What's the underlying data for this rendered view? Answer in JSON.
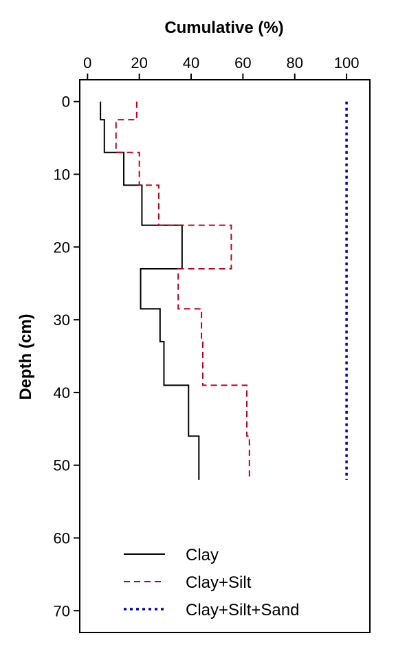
{
  "chart_data": {
    "type": "line",
    "orientation": "depth-profile",
    "title": "",
    "xlabel": "Cumulative (%)",
    "ylabel": "Depth (cm)",
    "xlim": [
      -3,
      109
    ],
    "ylim": [
      73,
      -3
    ],
    "x_axis_position": "top",
    "x_ticks": [
      0,
      20,
      40,
      60,
      80,
      100
    ],
    "y_ticks": [
      0,
      10,
      20,
      30,
      40,
      50,
      60,
      70
    ],
    "grid": false,
    "legend_position": "bottom-left",
    "series": [
      {
        "name": "Clay",
        "color": "#000000",
        "line_style": "solid",
        "steps": [
          {
            "x": 5,
            "y_top": 0,
            "y_bottom": 2.5
          },
          {
            "x": 6.5,
            "y_top": 2.5,
            "y_bottom": 7
          },
          {
            "x": 14,
            "y_top": 7,
            "y_bottom": 11.5
          },
          {
            "x": 21,
            "y_top": 11.5,
            "y_bottom": 17
          },
          {
            "x": 36.5,
            "y_top": 17,
            "y_bottom": 23
          },
          {
            "x": 20.5,
            "y_top": 23,
            "y_bottom": 28.5
          },
          {
            "x": 28,
            "y_top": 28.5,
            "y_bottom": 33
          },
          {
            "x": 29.5,
            "y_top": 33,
            "y_bottom": 39
          },
          {
            "x": 39,
            "y_top": 39,
            "y_bottom": 46
          },
          {
            "x": 43,
            "y_top": 46,
            "y_bottom": 52
          }
        ]
      },
      {
        "name": "Clay+Silt",
        "color": "#c0001a",
        "line_style": "dashed",
        "steps": [
          {
            "x": 19,
            "y_top": 0,
            "y_bottom": 2.5
          },
          {
            "x": 11,
            "y_top": 2.5,
            "y_bottom": 7
          },
          {
            "x": 20,
            "y_top": 7,
            "y_bottom": 11.5
          },
          {
            "x": 27.5,
            "y_top": 11.5,
            "y_bottom": 17
          },
          {
            "x": 55.5,
            "y_top": 17,
            "y_bottom": 23
          },
          {
            "x": 35,
            "y_top": 23,
            "y_bottom": 28.5
          },
          {
            "x": 44,
            "y_top": 28.5,
            "y_bottom": 33
          },
          {
            "x": 44.5,
            "y_top": 33,
            "y_bottom": 39
          },
          {
            "x": 61.5,
            "y_top": 39,
            "y_bottom": 46
          },
          {
            "x": 62.5,
            "y_top": 46,
            "y_bottom": 52
          }
        ]
      },
      {
        "name": "Clay+Silt+Sand",
        "color": "#0000b4",
        "line_style": "dotted",
        "steps": [
          {
            "x": 100,
            "y_top": 0,
            "y_bottom": 52
          }
        ]
      }
    ]
  }
}
